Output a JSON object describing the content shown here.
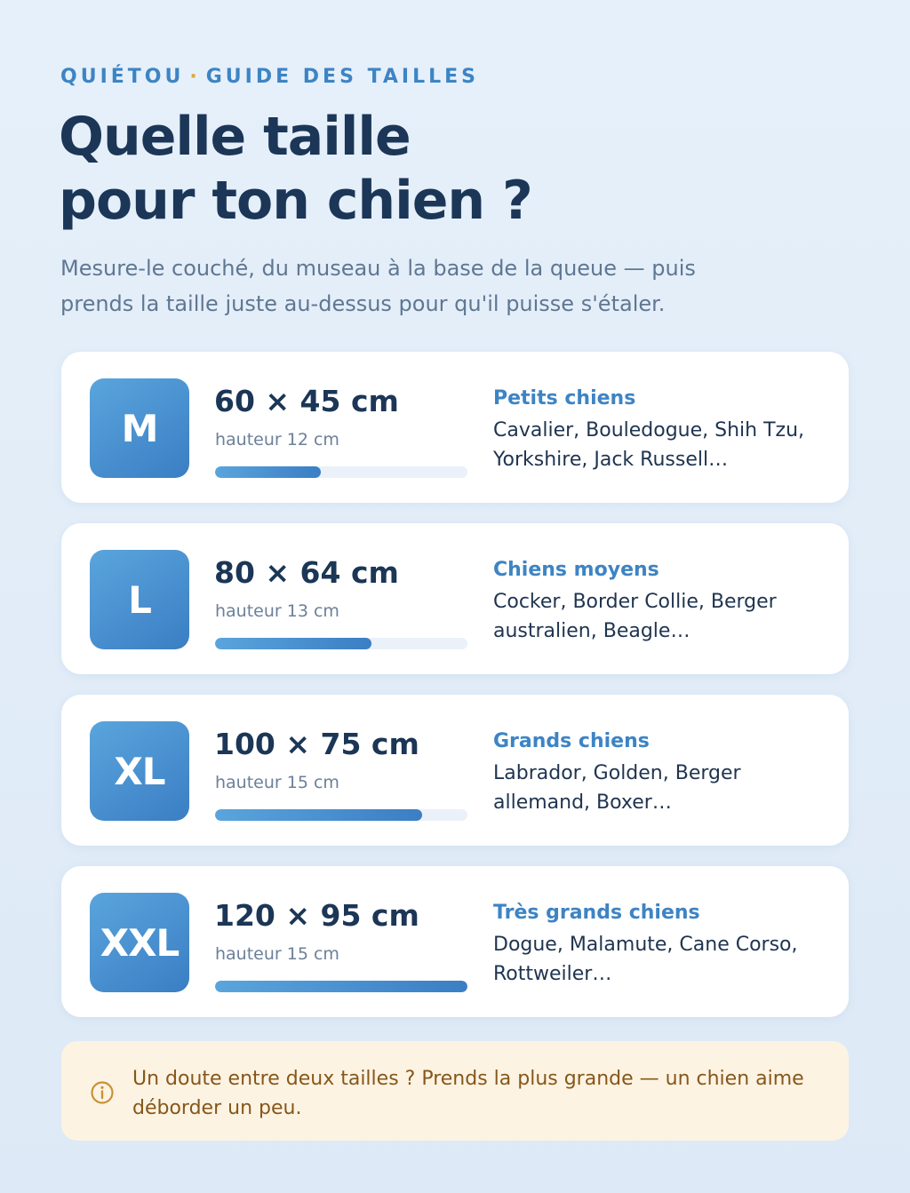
{
  "header": {
    "brand": "QUIÉTOU",
    "separator": "·",
    "section": "GUIDE DES TAILLES",
    "title_line1": "Quelle taille",
    "title_line2": "pour ton chien ?",
    "subtitle": "Mesure-le couché, du museau à la base de la queue — puis prends la taille juste au-dessus pour qu'il puisse s'étaler."
  },
  "sizes": [
    {
      "size": "M",
      "dimensions": "60 × 45 cm",
      "height": "hauteur 12 cm",
      "fill_fraction": 0.42,
      "category": "Petits chiens",
      "breeds": "Cavalier, Bouledogue, Shih Tzu, Yorkshire, Jack Russell…"
    },
    {
      "size": "L",
      "dimensions": "80 × 64 cm",
      "height": "hauteur 13 cm",
      "fill_fraction": 0.62,
      "category": "Chiens moyens",
      "breeds": "Cocker, Border Collie, Berger australien, Beagle…"
    },
    {
      "size": "XL",
      "dimensions": "100 × 75 cm",
      "height": "hauteur 15 cm",
      "fill_fraction": 0.82,
      "category": "Grands chiens",
      "breeds": "Labrador, Golden, Berger allemand, Boxer…"
    },
    {
      "size": "XXL",
      "dimensions": "120 × 95 cm",
      "height": "hauteur 15 cm",
      "fill_fraction": 1.0,
      "category": "Très grands chiens",
      "breeds": "Dogue, Malamute, Cane Corso, Rottweiler…"
    }
  ],
  "tip": {
    "icon": "info-icon",
    "text": "Un doute entre deux tailles ? Prends la plus grande — un chien aime déborder un peu."
  },
  "colors": {
    "accent": "#3d84c4",
    "title": "#1b3656",
    "tip_text": "#86571a",
    "tip_background": "#fdf3e3",
    "separator_dot": "#e0a43a"
  }
}
